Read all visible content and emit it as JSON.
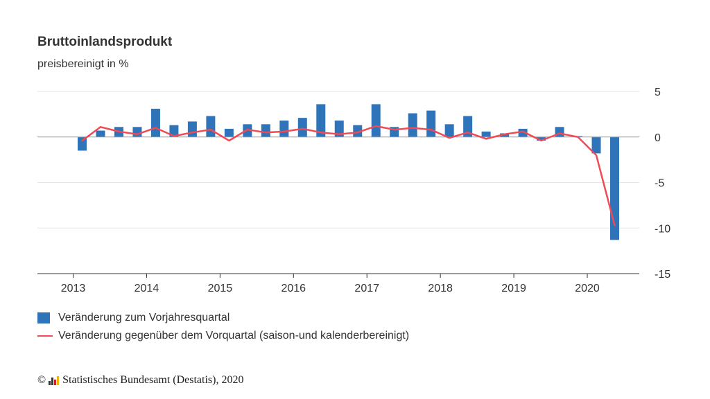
{
  "header": {
    "title": "Bruttoinlandsprodukt",
    "subtitle": "preisbereinigt in %"
  },
  "legend": {
    "bars_label": "Veränderung zum Vorjahresquartal",
    "line_label": "Veränderung gegenüber dem Vorquartal (saison-und kalenderbereinigt)"
  },
  "footer": {
    "copyright_symbol": "©",
    "source": "Statistisches Bundesamt (Destatis), 2020"
  },
  "colors": {
    "bars": "#2f74b8",
    "line": "#ef4a55",
    "zero_line": "#999999",
    "grid": "#e6e6e6",
    "axis": "#333333"
  },
  "chart_data": {
    "type": "bar",
    "y_ticks": [
      5,
      0,
      -5,
      -10,
      -15
    ],
    "ylim": [
      -15,
      5
    ],
    "x_ticks": [
      "2013",
      "2014",
      "2015",
      "2016",
      "2017",
      "2018",
      "2019",
      "2020"
    ],
    "grid": true,
    "legend_position": "bottom-left",
    "series": [
      {
        "name": "Veränderung zum Vorjahresquartal",
        "type": "bar",
        "values": [
          -1.5,
          0.7,
          1.1,
          1.1,
          3.1,
          1.3,
          1.7,
          2.3,
          0.9,
          1.4,
          1.4,
          1.8,
          2.1,
          3.6,
          1.8,
          1.3,
          3.6,
          1.1,
          2.6,
          2.9,
          1.4,
          2.3,
          0.6,
          0.4,
          0.9,
          -0.4,
          1.1,
          0.1,
          -1.8,
          -11.3
        ]
      },
      {
        "name": "Veränderung gegenüber dem Vorquartal (saison-und kalenderbereinigt)",
        "type": "line",
        "values": [
          -0.4,
          1.1,
          0.6,
          0.3,
          1.0,
          0.1,
          0.5,
          0.8,
          -0.4,
          0.8,
          0.5,
          0.6,
          0.9,
          0.5,
          0.3,
          0.5,
          1.2,
          0.8,
          1.0,
          0.8,
          -0.1,
          0.5,
          -0.2,
          0.3,
          0.6,
          -0.4,
          0.4,
          0.0,
          -2.0,
          -9.7
        ]
      }
    ]
  }
}
